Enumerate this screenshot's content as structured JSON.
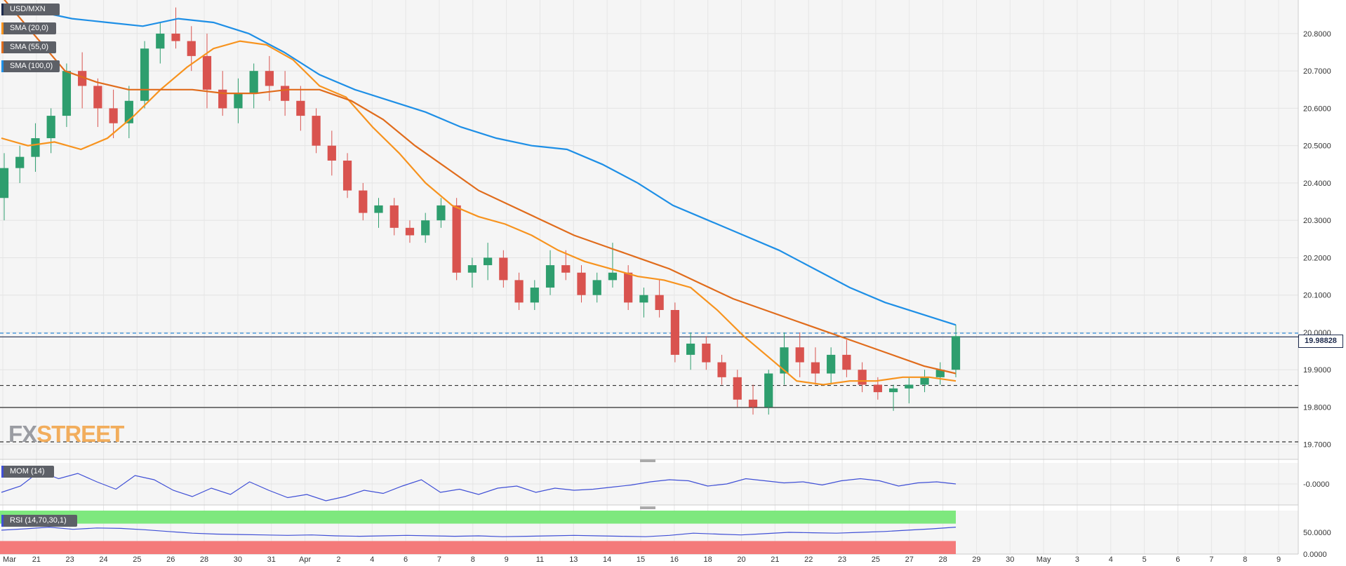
{
  "chart_data": [
    {
      "type": "line",
      "title": "USD/MXN",
      "subtype": "candlestick",
      "ylim": [
        19.66,
        20.89
      ],
      "y_ticks": [
        "20.8000",
        "20.7000",
        "20.6000",
        "20.5000",
        "20.4000",
        "20.3000",
        "20.2000",
        "20.1000",
        "20.0000",
        "19.9000",
        "19.8000",
        "19.7000"
      ],
      "x_ticks": [
        "Mar",
        "21",
        "23",
        "24",
        "25",
        "26",
        "28",
        "30",
        "31",
        "Apr",
        "2",
        "4",
        "6",
        "7",
        "8",
        "9",
        "11",
        "13",
        "14",
        "15",
        "16",
        "18",
        "20",
        "21",
        "22",
        "23",
        "25",
        "27",
        "28",
        "29",
        "30",
        "May",
        "3",
        "4",
        "5",
        "6",
        "7",
        "8",
        "9"
      ],
      "last_price": "19.98828",
      "legend": {
        "symbol": "USD/MXN",
        "items": [
          "SMA (20,0)",
          "SMA (55,0)",
          "SMA (100,0)"
        ]
      },
      "horizontal_levels": [
        {
          "value": 19.998,
          "style": "dashed",
          "color": "#2e8bd9"
        },
        {
          "value": 19.988,
          "style": "solid",
          "color": "#1d2a4d"
        },
        {
          "value": 19.858,
          "style": "dashed",
          "color": "#333333"
        },
        {
          "value": 19.799,
          "style": "solid",
          "color": "#333333"
        },
        {
          "value": 19.707,
          "style": "dashed",
          "color": "#333333"
        }
      ],
      "series": [
        {
          "name": "SMA (20,0)",
          "color": "#f7931e",
          "values": [
            20.52,
            20.5,
            20.51,
            20.49,
            20.52,
            20.58,
            20.65,
            20.71,
            20.76,
            20.78,
            20.77,
            20.73,
            20.66,
            20.63,
            20.55,
            20.48,
            20.4,
            20.34,
            20.31,
            20.29,
            20.26,
            20.22,
            20.19,
            20.17,
            20.15,
            20.14,
            20.12,
            20.06,
            19.99,
            19.93,
            19.87,
            19.86,
            19.87,
            19.87,
            19.88,
            19.88,
            19.87
          ]
        },
        {
          "name": "SMA (55,0)",
          "color": "#e06c1c",
          "values": [
            20.9,
            20.8,
            20.7,
            20.67,
            20.65,
            20.65,
            20.65,
            20.64,
            20.64,
            20.65,
            20.65,
            20.62,
            20.57,
            20.5,
            20.44,
            20.38,
            20.34,
            20.3,
            20.26,
            20.23,
            20.2,
            20.17,
            20.13,
            20.09,
            20.06,
            20.03,
            20.0,
            19.97,
            19.94,
            19.91,
            19.89
          ]
        },
        {
          "name": "SMA (100,0)",
          "color": "#1e8fe6",
          "values": [
            20.87,
            20.86,
            20.84,
            20.83,
            20.82,
            20.84,
            20.83,
            20.8,
            20.75,
            20.69,
            20.65,
            20.62,
            20.59,
            20.55,
            20.52,
            20.5,
            20.49,
            20.45,
            20.4,
            20.34,
            20.3,
            20.26,
            20.22,
            20.17,
            20.12,
            20.08,
            20.05,
            20.02
          ]
        }
      ],
      "candles": [
        [
          20.36,
          20.48,
          20.3,
          20.44
        ],
        [
          20.44,
          20.5,
          20.4,
          20.47
        ],
        [
          20.47,
          20.56,
          20.43,
          20.52
        ],
        [
          20.52,
          20.6,
          20.48,
          20.58
        ],
        [
          20.58,
          20.72,
          20.55,
          20.7
        ],
        [
          20.7,
          20.75,
          20.6,
          20.66
        ],
        [
          20.66,
          20.68,
          20.55,
          20.6
        ],
        [
          20.6,
          20.65,
          20.52,
          20.56
        ],
        [
          20.56,
          20.66,
          20.52,
          20.62
        ],
        [
          20.62,
          20.78,
          20.6,
          20.76
        ],
        [
          20.76,
          20.83,
          20.72,
          20.8
        ],
        [
          20.8,
          20.87,
          20.76,
          20.78
        ],
        [
          20.78,
          20.82,
          20.7,
          20.74
        ],
        [
          20.74,
          20.8,
          20.6,
          20.65
        ],
        [
          20.65,
          20.7,
          20.58,
          20.6
        ],
        [
          20.6,
          20.68,
          20.56,
          20.64
        ],
        [
          20.64,
          20.72,
          20.6,
          20.7
        ],
        [
          20.7,
          20.74,
          20.62,
          20.66
        ],
        [
          20.66,
          20.7,
          20.58,
          20.62
        ],
        [
          20.62,
          20.66,
          20.54,
          20.58
        ],
        [
          20.58,
          20.6,
          20.48,
          20.5
        ],
        [
          20.5,
          20.54,
          20.42,
          20.46
        ],
        [
          20.46,
          20.48,
          20.36,
          20.38
        ],
        [
          20.38,
          20.4,
          20.3,
          20.32
        ],
        [
          20.32,
          20.36,
          20.28,
          20.34
        ],
        [
          20.34,
          20.36,
          20.26,
          20.28
        ],
        [
          20.28,
          20.3,
          20.24,
          20.26
        ],
        [
          20.26,
          20.32,
          20.24,
          20.3
        ],
        [
          20.3,
          20.36,
          20.28,
          20.34
        ],
        [
          20.34,
          20.36,
          20.14,
          20.16
        ],
        [
          20.16,
          20.2,
          20.12,
          20.18
        ],
        [
          20.18,
          20.24,
          20.14,
          20.2
        ],
        [
          20.2,
          20.22,
          20.12,
          20.14
        ],
        [
          20.14,
          20.16,
          20.06,
          20.08
        ],
        [
          20.08,
          20.14,
          20.06,
          20.12
        ],
        [
          20.12,
          20.22,
          20.1,
          20.18
        ],
        [
          20.18,
          20.22,
          20.14,
          20.16
        ],
        [
          20.16,
          20.18,
          20.08,
          20.1
        ],
        [
          20.1,
          20.16,
          20.08,
          20.14
        ],
        [
          20.14,
          20.24,
          20.12,
          20.16
        ],
        [
          20.16,
          20.18,
          20.06,
          20.08
        ],
        [
          20.08,
          20.12,
          20.04,
          20.1
        ],
        [
          20.1,
          20.14,
          20.04,
          20.06
        ],
        [
          20.06,
          20.08,
          19.92,
          19.94
        ],
        [
          19.94,
          20.0,
          19.9,
          19.97
        ],
        [
          19.97,
          19.99,
          19.9,
          19.92
        ],
        [
          19.92,
          19.94,
          19.86,
          19.88
        ],
        [
          19.88,
          19.9,
          19.8,
          19.82
        ],
        [
          19.82,
          19.86,
          19.78,
          19.8
        ],
        [
          19.8,
          19.9,
          19.78,
          19.89
        ],
        [
          19.89,
          20.0,
          19.86,
          19.96
        ],
        [
          19.96,
          20.0,
          19.88,
          19.92
        ],
        [
          19.92,
          19.96,
          19.86,
          19.89
        ],
        [
          19.89,
          19.96,
          19.86,
          19.94
        ],
        [
          19.94,
          19.98,
          19.88,
          19.9
        ],
        [
          19.9,
          19.92,
          19.84,
          19.86
        ],
        [
          19.86,
          19.88,
          19.82,
          19.84
        ],
        [
          19.84,
          19.86,
          19.79,
          19.85
        ],
        [
          19.85,
          19.88,
          19.81,
          19.86
        ],
        [
          19.86,
          19.9,
          19.84,
          19.88
        ],
        [
          19.88,
          19.92,
          19.86,
          19.9
        ],
        [
          19.9,
          20.02,
          19.88,
          19.99
        ]
      ]
    },
    {
      "type": "line",
      "title": "MOM (14)",
      "y_ticks": [
        "-0.0000"
      ],
      "series": [
        {
          "name": "MOM (14)",
          "color": "#3f4fd6",
          "values": [
            -0.08,
            -0.02,
            0.12,
            0.05,
            0.1,
            0.02,
            -0.05,
            0.08,
            0.04,
            -0.06,
            -0.12,
            -0.04,
            -0.1,
            0.02,
            -0.06,
            -0.13,
            -0.1,
            -0.16,
            -0.12,
            -0.06,
            -0.09,
            -0.02,
            0.04,
            -0.08,
            -0.05,
            -0.1,
            -0.04,
            -0.02,
            -0.08,
            -0.04,
            -0.06,
            -0.05,
            -0.03,
            -0.01,
            0.02,
            0.04,
            0.03,
            -0.02,
            0.0,
            0.05,
            0.03,
            0.01,
            0.02,
            -0.01,
            0.03,
            0.05,
            0.03,
            -0.02,
            0.01,
            0.02,
            0.0
          ]
        }
      ]
    },
    {
      "type": "line",
      "title": "RSI (14,70,30,1)",
      "y_ticks": [
        "50.0000",
        "0.0000"
      ],
      "bands": [
        {
          "from": 70,
          "to": 100,
          "color": "#7ee87e"
        },
        {
          "from": 0,
          "to": 30,
          "color": "#f47a7a"
        }
      ],
      "series": [
        {
          "name": "RSI (14,70,30,1)",
          "color": "#3f4fd6",
          "values": [
            55,
            58,
            62,
            57,
            60,
            59,
            56,
            52,
            48,
            46,
            45,
            44,
            43,
            44,
            42,
            41,
            42,
            43,
            42,
            41,
            42,
            40,
            41,
            42,
            43,
            42,
            41,
            40,
            43,
            48,
            46,
            44,
            47,
            50,
            49,
            48,
            50,
            52,
            55,
            58,
            62
          ]
        }
      ]
    }
  ]
}
